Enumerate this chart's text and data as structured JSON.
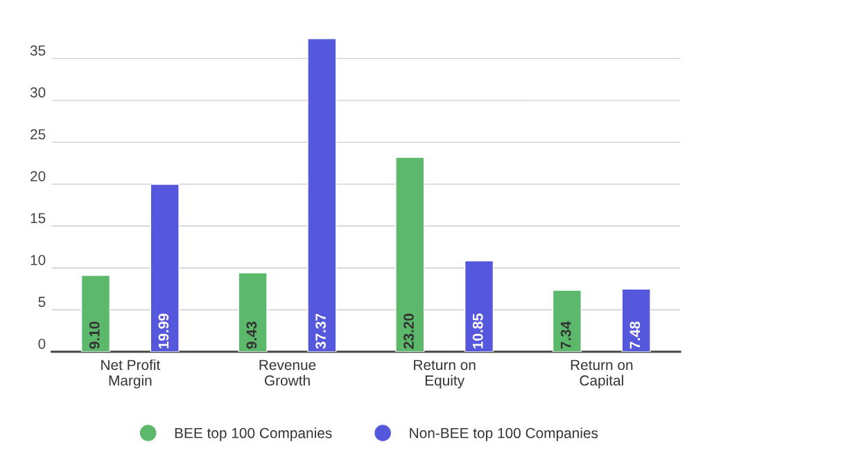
{
  "chart_data": {
    "type": "bar",
    "categories": [
      "Net Profit\nMargin",
      "Revenue\nGrowth",
      "Return on\nEquity",
      "Return on\nCapital"
    ],
    "series": [
      {
        "name": "BEE top 100 Companies",
        "color": "#5cb96b",
        "values": [
          9.1,
          9.43,
          23.2,
          7.34
        ],
        "value_labels": [
          "9.10",
          "9.43",
          "23.20",
          "7.34"
        ]
      },
      {
        "name": "Non-BEE top 100 Companies",
        "color": "#5558dd",
        "values": [
          19.99,
          37.37,
          10.85,
          7.48
        ],
        "value_labels": [
          "19.99",
          "37.37",
          "10.85",
          "7.48"
        ]
      }
    ],
    "ylim": [
      0,
      37.5
    ],
    "yticks": [
      0,
      5,
      10,
      15,
      20,
      25,
      30,
      35
    ],
    "grid": "y",
    "legend": "bottom"
  }
}
